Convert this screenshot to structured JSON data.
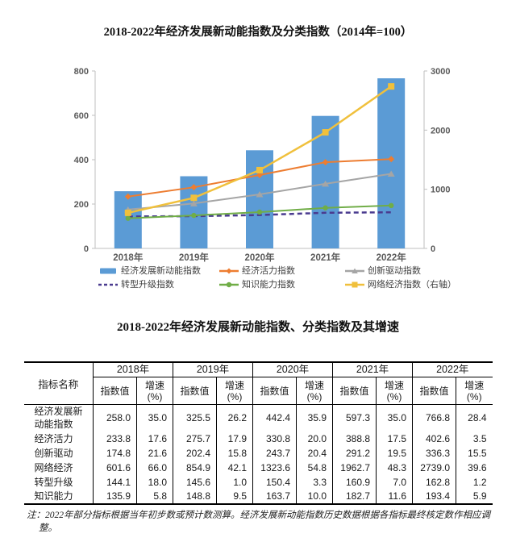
{
  "chart_data": {
    "type": "bar+line",
    "title": "2018-2022年经济发展新动能指数及分类指数（2014年=100）",
    "categories": [
      "2018年",
      "2019年",
      "2020年",
      "2021年",
      "2022年"
    ],
    "left_axis": {
      "ticks": [
        0,
        200,
        400,
        600,
        800
      ],
      "max": 800
    },
    "right_axis": {
      "ticks": [
        0,
        1000,
        2000,
        3000
      ],
      "max": 3000
    },
    "legend_position": "bottom",
    "grid": false,
    "series": [
      {
        "name": "经济发展新动能指数",
        "type": "bar",
        "axis": "left",
        "color": "#5B9BD5",
        "marker": "none",
        "dash": false,
        "values": [
          258.0,
          325.5,
          442.4,
          597.3,
          766.8
        ]
      },
      {
        "name": "经济活力指数",
        "type": "line",
        "axis": "left",
        "color": "#ED7D31",
        "marker": "diamond",
        "dash": false,
        "values": [
          233.8,
          275.7,
          330.8,
          388.8,
          402.6
        ]
      },
      {
        "name": "创新驱动指数",
        "type": "line",
        "axis": "left",
        "color": "#A5A5A5",
        "marker": "triangle",
        "dash": false,
        "values": [
          174.8,
          202.4,
          243.7,
          291.2,
          336.3
        ]
      },
      {
        "name": "转型升级指数",
        "type": "line",
        "axis": "left",
        "color": "#4A3B8F",
        "marker": "none",
        "dash": true,
        "values": [
          144.1,
          145.6,
          150.4,
          160.9,
          162.8
        ]
      },
      {
        "name": "知识能力指数",
        "type": "line",
        "axis": "left",
        "color": "#70AD47",
        "marker": "circle",
        "dash": false,
        "values": [
          135.9,
          148.8,
          163.7,
          182.7,
          193.4
        ]
      },
      {
        "name": "网络经济指数（右轴）",
        "type": "line",
        "axis": "right",
        "color": "#F0C03C",
        "marker": "square",
        "dash": false,
        "values": [
          601.6,
          854.9,
          1323.6,
          1962.7,
          2739.0
        ]
      }
    ]
  },
  "table": {
    "title": "2018-2022年经济发展新动能指数、分类指数及其增速",
    "header": {
      "name_col": "指标名称",
      "years": [
        "2018年",
        "2019年",
        "2020年",
        "2021年",
        "2022年"
      ],
      "sub_value": "指数值",
      "sub_growth": "增速\n(%)"
    },
    "rows": [
      {
        "name": "经济发展新\n动能指数",
        "tall": true,
        "values": [
          "258.0",
          "35.0",
          "325.5",
          "26.2",
          "442.4",
          "35.9",
          "597.3",
          "35.0",
          "766.8",
          "28.4"
        ]
      },
      {
        "name": "经济活力",
        "tall": false,
        "values": [
          "233.8",
          "17.6",
          "275.7",
          "17.9",
          "330.8",
          "20.0",
          "388.8",
          "17.5",
          "402.6",
          "3.5"
        ]
      },
      {
        "name": "创新驱动",
        "tall": false,
        "values": [
          "174.8",
          "21.6",
          "202.4",
          "15.8",
          "243.7",
          "20.4",
          "291.2",
          "19.5",
          "336.3",
          "15.5"
        ]
      },
      {
        "name": "网络经济",
        "tall": false,
        "values": [
          "601.6",
          "66.0",
          "854.9",
          "42.1",
          "1323.6",
          "54.8",
          "1962.7",
          "48.3",
          "2739.0",
          "39.6"
        ]
      },
      {
        "name": "转型升级",
        "tall": false,
        "values": [
          "144.1",
          "18.0",
          "145.6",
          "1.0",
          "150.4",
          "3.3",
          "160.9",
          "7.0",
          "162.8",
          "1.2"
        ]
      },
      {
        "name": "知识能力",
        "tall": false,
        "values": [
          "135.9",
          "5.8",
          "148.8",
          "9.5",
          "163.7",
          "10.0",
          "182.7",
          "11.6",
          "193.4",
          "5.9"
        ]
      }
    ]
  },
  "footnote": {
    "text": "注：2022年部分指标根据当年初步数或预计数测算。经济发展新动能指数历史数据根据各指标最终核定数作相应调整。"
  },
  "style_colors": {
    "axis_line": "#BFBFBF",
    "axis_label": "#595959",
    "title_text": "#111111"
  }
}
